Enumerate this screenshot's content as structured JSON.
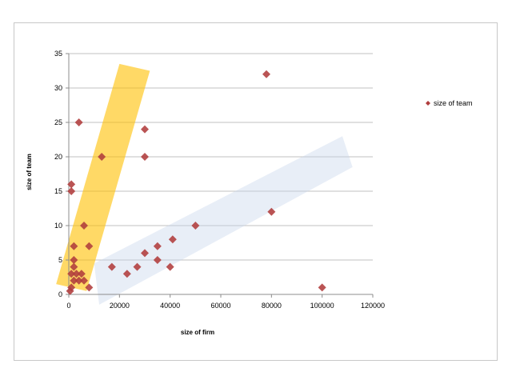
{
  "chart_data": {
    "type": "scatter",
    "title": "",
    "xlabel": "size of firm",
    "ylabel": "size of team",
    "xlim": [
      0,
      120000
    ],
    "ylim": [
      0,
      35
    ],
    "xticks": [
      0,
      20000,
      40000,
      60000,
      80000,
      100000,
      120000
    ],
    "yticks": [
      0,
      5,
      10,
      15,
      20,
      25,
      30,
      35
    ],
    "grid": "horizontal",
    "legend_position": "right",
    "series": [
      {
        "name": "size of team",
        "color": "#b03c3c",
        "marker": "diamond",
        "points": [
          {
            "x": 78000,
            "y": 32
          },
          {
            "x": 4000,
            "y": 25
          },
          {
            "x": 30000,
            "y": 24
          },
          {
            "x": 30000,
            "y": 20
          },
          {
            "x": 13000,
            "y": 20
          },
          {
            "x": 1000,
            "y": 16
          },
          {
            "x": 1000,
            "y": 15
          },
          {
            "x": 80000,
            "y": 12
          },
          {
            "x": 6000,
            "y": 10
          },
          {
            "x": 50000,
            "y": 10
          },
          {
            "x": 41000,
            "y": 8
          },
          {
            "x": 35000,
            "y": 7
          },
          {
            "x": 2000,
            "y": 7
          },
          {
            "x": 8000,
            "y": 7
          },
          {
            "x": 30000,
            "y": 6
          },
          {
            "x": 35000,
            "y": 5
          },
          {
            "x": 2000,
            "y": 5
          },
          {
            "x": 17000,
            "y": 4
          },
          {
            "x": 27000,
            "y": 4
          },
          {
            "x": 40000,
            "y": 4
          },
          {
            "x": 2000,
            "y": 4
          },
          {
            "x": 23000,
            "y": 3
          },
          {
            "x": 1000,
            "y": 3
          },
          {
            "x": 3000,
            "y": 3
          },
          {
            "x": 5000,
            "y": 3
          },
          {
            "x": 2000,
            "y": 2
          },
          {
            "x": 4000,
            "y": 2
          },
          {
            "x": 6000,
            "y": 2
          },
          {
            "x": 1000,
            "y": 1
          },
          {
            "x": 8000,
            "y": 1
          },
          {
            "x": 100000,
            "y": 1
          },
          {
            "x": 500,
            "y": 0.5
          }
        ]
      }
    ],
    "highlight_bands": [
      {
        "color": "#ffc000",
        "opacity": 0.6,
        "corners": [
          [
            -5000,
            1.5
          ],
          [
            20000,
            33.5
          ],
          [
            32000,
            32.5
          ],
          [
            7000,
            0.5
          ]
        ]
      },
      {
        "color": "#c5d5ea",
        "opacity": 0.4,
        "corners": [
          [
            10000,
            4.5
          ],
          [
            108000,
            23
          ],
          [
            112000,
            18.5
          ],
          [
            12000,
            -1.5
          ]
        ]
      }
    ]
  }
}
